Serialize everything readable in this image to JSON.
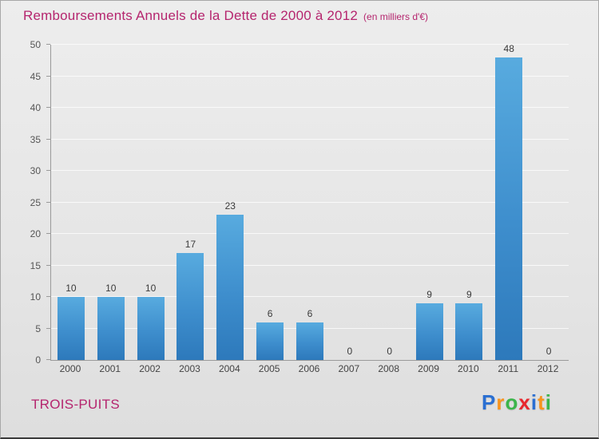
{
  "header": {
    "title": "Remboursements Annuels de la Dette de 2000 à 2012",
    "subtitle": "(en milliers d'€)"
  },
  "colors": {
    "accent": "#b5256e",
    "bar_top": "#58abdf",
    "bar_mid": "#3e8ecd",
    "bar_bottom": "#2d79bb",
    "axis": "#9a9a9a",
    "tick_text": "#555555",
    "value_text": "#3a3a3a"
  },
  "chart_data": {
    "type": "bar",
    "title": "Remboursements Annuels de la Dette de 2000 à 2012",
    "subtitle": "(en milliers d'€)",
    "categories": [
      "2000",
      "2001",
      "2002",
      "2003",
      "2004",
      "2005",
      "2006",
      "2007",
      "2008",
      "2009",
      "2010",
      "2011",
      "2012"
    ],
    "values": [
      10,
      10,
      10,
      17,
      23,
      6,
      6,
      0,
      0,
      9,
      9,
      48,
      0
    ],
    "ylim": [
      0,
      50
    ],
    "ytick_step": 5,
    "grid": true,
    "legend": "none",
    "xlabel": "",
    "ylabel": ""
  },
  "footer": {
    "org": "TROIS-PUITS",
    "logo_letters": [
      {
        "ch": "P",
        "color": "#2a6fd2"
      },
      {
        "ch": "r",
        "color": "#f7941d"
      },
      {
        "ch": "o",
        "color": "#3bb54a"
      },
      {
        "ch": "x",
        "color": "#e8262d"
      },
      {
        "ch": "i",
        "color": "#2a6fd2"
      },
      {
        "ch": "t",
        "color": "#f7941d"
      },
      {
        "ch": "i",
        "color": "#3bb54a"
      }
    ]
  }
}
